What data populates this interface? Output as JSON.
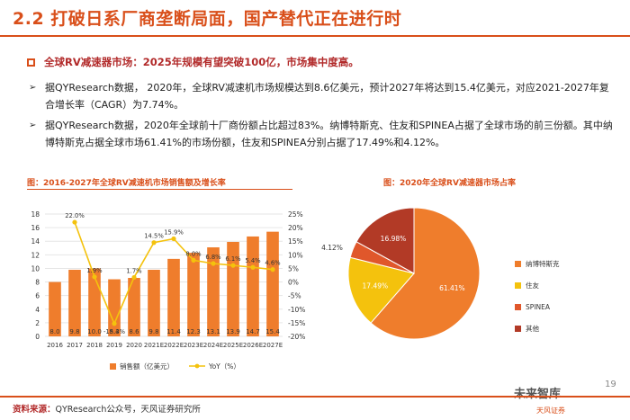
{
  "page": {
    "title": "2.2 打破日系厂商垄断局面，国产替代正在进行时",
    "page_number": "19"
  },
  "section": {
    "heading": "全球RV减速器市场：2025年规模有望突破100亿，市场集中度高。",
    "paragraphs": [
      "据QYResearch数据， 2020年，全球RV减速机市场规模达到8.6亿美元，预计2027年将达到15.4亿美元，对应2021-2027年复合增长率（CAGR）为7.74%。",
      "据QYResearch数据，2020年全球前十厂商份额占比超过83%。纳博特斯克、住友和SPINEA占据了全球市场的前三份额。其中纳博特斯克占据全球市场61.41%的市场份额，住友和SPINEA分别占据了17.49%和4.12%。"
    ]
  },
  "footer": {
    "label": "资料来源：",
    "source": "QYResearch公众号，天风证券研究所"
  },
  "watermark": {
    "brand": "未来智库",
    "sub": "天风证券"
  },
  "chart_data": [
    {
      "type": "bar",
      "title": "图：2016-2027年全球RV减速机市场销售额及增长率",
      "categories": [
        "2016",
        "2017",
        "2018",
        "2019",
        "2020",
        "2021E",
        "2022E",
        "2023E",
        "2024E",
        "2025E",
        "2026E",
        "2027E"
      ],
      "series": [
        {
          "name": "销售额（亿美元）",
          "type": "bar",
          "axis": "left",
          "values": [
            8.0,
            9.8,
            10.0,
            8.4,
            8.6,
            9.8,
            11.4,
            12.3,
            13.1,
            13.9,
            14.7,
            15.4
          ],
          "labels": [
            "8.0",
            "9.8",
            "10.0",
            "8.4",
            "8.6",
            "9.8",
            "11.4",
            "12.3",
            "13.1",
            "13.9",
            "14.7",
            "15.4"
          ]
        },
        {
          "name": "YoY（%）",
          "type": "line",
          "axis": "right",
          "values": [
            null,
            22.0,
            1.9,
            -15.3,
            1.7,
            14.5,
            15.9,
            8.0,
            6.8,
            6.1,
            5.4,
            4.6
          ],
          "labels": [
            "",
            "22.0%",
            "1.9%",
            "-15.3%",
            "1.7%",
            "14.5%",
            "15.9%",
            "8.0%",
            "6.8%",
            "6.1%",
            "5.4%",
            "4.6%"
          ]
        }
      ],
      "left_axis": {
        "min": 0,
        "max": 18,
        "ticks": [
          "0",
          "2",
          "4",
          "6",
          "8",
          "10",
          "12",
          "14",
          "16",
          "18"
        ]
      },
      "right_axis": {
        "min": -20,
        "max": 25,
        "ticks": [
          "-20%",
          "-15%",
          "-10%",
          "-5%",
          "0%",
          "5%",
          "10%",
          "15%",
          "20%",
          "25%"
        ]
      },
      "colors": {
        "bar": "#ef7d2c",
        "line": "#f4c20d"
      }
    },
    {
      "type": "pie",
      "title": "图：2020年全球RV减速器市场占率",
      "slices": [
        {
          "name": "纳博特斯克",
          "value": 61.41,
          "label": "61.41%",
          "color": "#ef7d2c"
        },
        {
          "name": "住友",
          "value": 17.49,
          "label": "17.49%",
          "color": "#f4c20d"
        },
        {
          "name": "SPINEA",
          "value": 4.12,
          "label": "4.12%",
          "color": "#e0572b"
        },
        {
          "name": "其他",
          "value": 16.98,
          "label": "16.98%",
          "color": "#b23a26"
        }
      ]
    }
  ]
}
